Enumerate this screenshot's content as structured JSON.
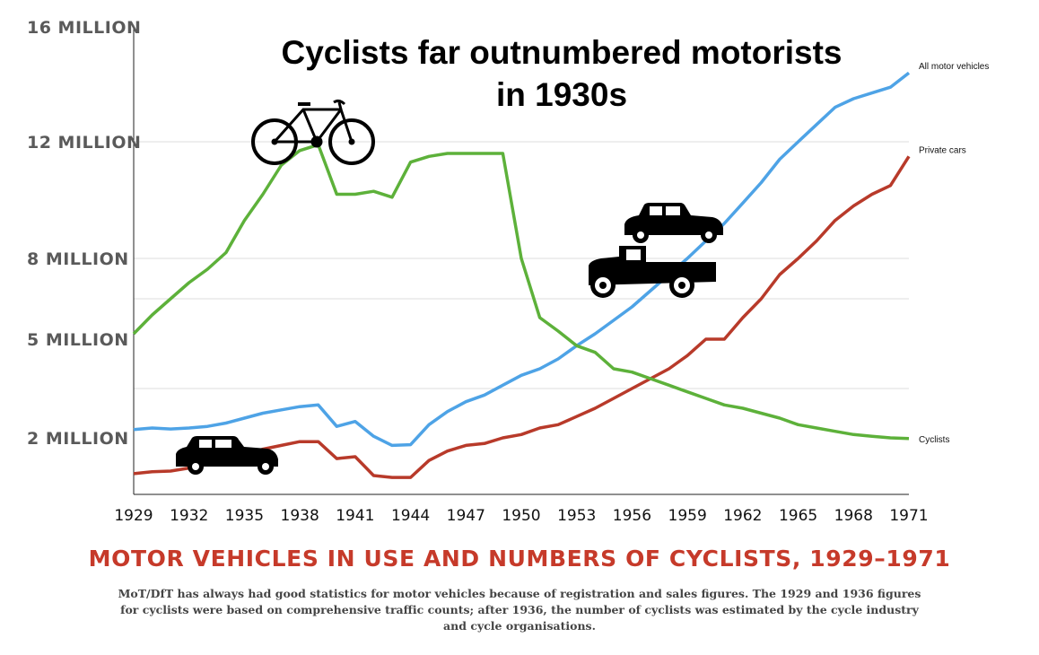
{
  "chart_data": {
    "type": "line",
    "title": "Cyclists far outnumbered motorists in 1930s",
    "caption": "MOTOR VEHICLES IN USE AND NUMBERS OF CYCLISTS, 1929–1971",
    "note": "MoT/DfT has always had good statistics for motor vehicles because of registration and sales figures. The 1929 and 1936 figures for cyclists were based on comprehensive traffic counts; after 1936, the number of cyclists was estimated by the cycle industry and cycle organisations.",
    "xlabel": "",
    "ylabel": "",
    "x_ticks": [
      "1929",
      "1932",
      "1935",
      "1938",
      "1941",
      "1944",
      "1947",
      "1950",
      "1953",
      "1956",
      "1959",
      "1962",
      "1965",
      "1968",
      "1971"
    ],
    "y_ticks": [
      {
        "label": "2 MILLION",
        "value": 2
      },
      {
        "label": "5 MILLION",
        "value": 5
      },
      {
        "label": "8 MILLION",
        "value": 8
      },
      {
        "label": "12 MILLION",
        "value": 12
      },
      {
        "label": "16 MILLION",
        "value": 16
      }
    ],
    "xlim": [
      1929,
      1971
    ],
    "x": [
      1929,
      1930,
      1931,
      1932,
      1933,
      1934,
      1935,
      1936,
      1937,
      1938,
      1939,
      1940,
      1941,
      1942,
      1943,
      1944,
      1945,
      1946,
      1947,
      1948,
      1949,
      1950,
      1951,
      1952,
      1953,
      1954,
      1955,
      1956,
      1957,
      1958,
      1959,
      1960,
      1961,
      1962,
      1963,
      1964,
      1965,
      1966,
      1967,
      1968,
      1969,
      1970,
      1971
    ],
    "series": [
      {
        "name": "Cyclists",
        "color": "#5db13a",
        "values": [
          5.2,
          5.9,
          6.5,
          7.1,
          7.6,
          8.2,
          9.3,
          10.2,
          11.2,
          11.7,
          11.9,
          10.2,
          10.2,
          10.3,
          10.1,
          11.3,
          11.5,
          11.6,
          11.6,
          11.6,
          11.6,
          8.0,
          5.8,
          5.3,
          4.8,
          4.6,
          4.1,
          4.0,
          3.8,
          3.6,
          3.4,
          3.2,
          3.0,
          2.9,
          2.75,
          2.6,
          2.4,
          2.3,
          2.2,
          2.1,
          2.05,
          2.0,
          1.98
        ]
      },
      {
        "name": "All motor vehicles",
        "color": "#4ea3e6",
        "values": [
          2.25,
          2.3,
          2.27,
          2.3,
          2.35,
          2.45,
          2.6,
          2.75,
          2.85,
          2.95,
          3.0,
          2.35,
          2.5,
          2.05,
          1.8,
          1.82,
          2.4,
          2.8,
          3.1,
          3.3,
          3.6,
          3.9,
          4.1,
          4.4,
          4.8,
          5.2,
          5.7,
          6.2,
          6.8,
          7.4,
          8.0,
          8.6,
          9.2,
          9.9,
          10.6,
          11.4,
          12.0,
          12.6,
          13.2,
          13.5,
          13.7,
          13.9,
          14.4
        ]
      },
      {
        "name": "Private cars",
        "color": "#b83a2a",
        "values": [
          1.05,
          1.1,
          1.12,
          1.2,
          1.3,
          1.4,
          1.55,
          1.7,
          1.8,
          1.9,
          1.9,
          1.45,
          1.5,
          1.0,
          0.95,
          0.95,
          1.4,
          1.65,
          1.8,
          1.85,
          2.0,
          2.1,
          2.3,
          2.4,
          2.65,
          2.9,
          3.2,
          3.5,
          3.8,
          4.1,
          4.5,
          5.0,
          5.0,
          5.8,
          6.5,
          7.4,
          8.0,
          8.6,
          9.3,
          9.8,
          10.2,
          10.5,
          11.5
        ]
      }
    ]
  },
  "icons": [
    "bicycle-icon",
    "car-icon",
    "truck-icon",
    "car-icon"
  ]
}
